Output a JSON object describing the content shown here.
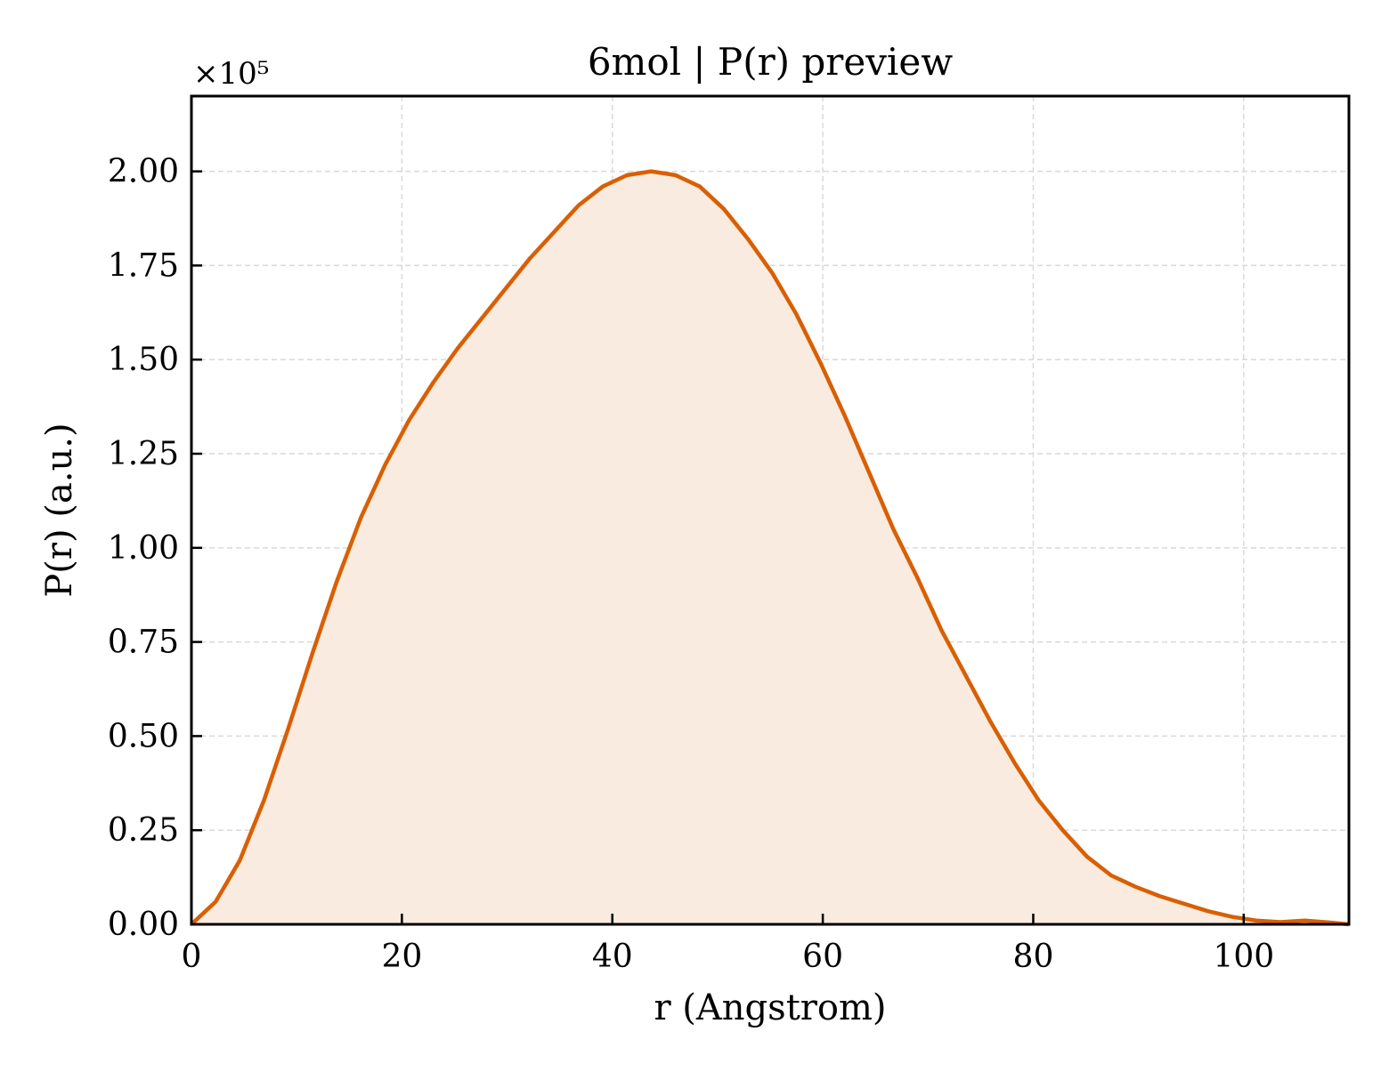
{
  "chart_data": {
    "type": "area",
    "title": "6mol | P(r) preview",
    "xlabel": "r (Angstrom)",
    "ylabel": "P(r) (a.u.)",
    "y_multiplier_label": "×10⁵",
    "xlim": [
      0,
      110
    ],
    "ylim": [
      0,
      2.2
    ],
    "y_scale_factor": 100000,
    "grid": true,
    "x_ticks": [
      0,
      20,
      40,
      60,
      80,
      100
    ],
    "x_tick_labels": [
      "0",
      "20",
      "40",
      "60",
      "80",
      "100"
    ],
    "y_ticks": [
      0,
      0.25,
      0.5,
      0.75,
      1.0,
      1.25,
      1.5,
      1.75,
      2.0
    ],
    "y_tick_labels": [
      "0.00",
      "0.25",
      "0.50",
      "0.75",
      "1.00",
      "1.25",
      "1.50",
      "1.75",
      "2.00"
    ],
    "series": [
      {
        "color": "#d95f02",
        "fill_color": "#f9ebe0",
        "x": [
          0,
          2.3,
          4.6,
          6.9,
          9.2,
          11.5,
          13.8,
          16.1,
          18.4,
          20.7,
          23.0,
          25.3,
          27.6,
          29.9,
          32.2,
          34.5,
          36.8,
          39.1,
          41.4,
          43.7,
          46.0,
          48.3,
          50.6,
          52.9,
          55.2,
          57.5,
          59.8,
          62.1,
          64.4,
          66.7,
          69.0,
          71.3,
          73.6,
          75.9,
          78.2,
          80.5,
          82.8,
          85.1,
          87.4,
          89.7,
          92.0,
          94.3,
          96.6,
          98.9,
          101.2,
          103.5,
          105.8,
          108.1,
          110.0
        ],
        "y": [
          0.0,
          0.06,
          0.17,
          0.33,
          0.52,
          0.72,
          0.91,
          1.08,
          1.22,
          1.34,
          1.44,
          1.53,
          1.61,
          1.69,
          1.77,
          1.84,
          1.91,
          1.96,
          1.99,
          2.0,
          1.99,
          1.96,
          1.9,
          1.82,
          1.73,
          1.62,
          1.49,
          1.35,
          1.2,
          1.05,
          0.92,
          0.78,
          0.66,
          0.54,
          0.43,
          0.33,
          0.25,
          0.18,
          0.13,
          0.1,
          0.075,
          0.055,
          0.035,
          0.02,
          0.01,
          0.006,
          0.01,
          0.005,
          0.0
        ]
      }
    ]
  }
}
